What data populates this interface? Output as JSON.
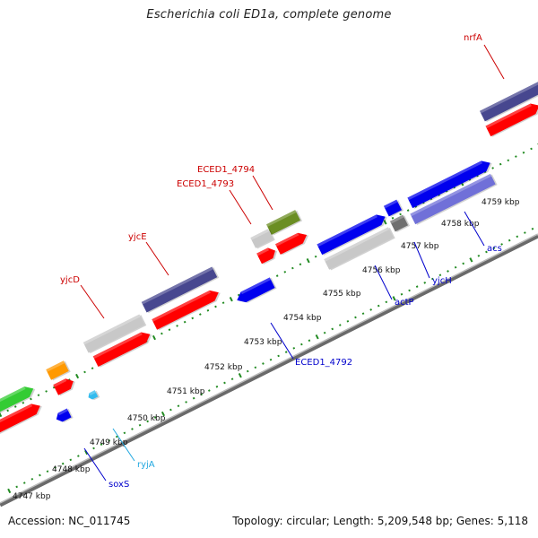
{
  "title": "Escherichia coli ED1a, complete genome",
  "footer": {
    "accession": "Accession: NC_011745",
    "summary": "Topology: circular; Length: 5,209,548 bp; Genes: 5,118"
  },
  "colors": {
    "red": "#ff0000",
    "dark_slate": "#47478f",
    "light_gray": "#c8c8c8",
    "dark_gray": "#707070",
    "blue": "#0000ee",
    "lavender": "#7070d8",
    "olive": "#6b8e23",
    "green": "#33cc33",
    "orange": "#ff9900",
    "cyan": "#33bbee",
    "tick_green": "#228b22",
    "label_red": "#cc0000",
    "label_blue": "#0000cc",
    "label_cyan": "#22a8e0"
  },
  "ticks": [
    {
      "label": "4747 kbp"
    },
    {
      "label": "4748 kbp"
    },
    {
      "label": "4749 kbp"
    },
    {
      "label": "4750 kbp"
    },
    {
      "label": "4751 kbp"
    },
    {
      "label": "4752 kbp"
    },
    {
      "label": "4753 kbp"
    },
    {
      "label": "4754 kbp"
    },
    {
      "label": "4755 kbp"
    },
    {
      "label": "4756 kbp"
    },
    {
      "label": "4757 kbp"
    },
    {
      "label": "4758 kbp"
    },
    {
      "label": "4759 kbp"
    }
  ],
  "gene_labels": [
    {
      "text": "nrfA",
      "color": "label_red"
    },
    {
      "text": "ECED1_4794",
      "color": "label_red"
    },
    {
      "text": "ECED1_4793",
      "color": "label_red"
    },
    {
      "text": "yjcE",
      "color": "label_red"
    },
    {
      "text": "yjcD",
      "color": "label_red"
    },
    {
      "text": "acs",
      "color": "label_blue"
    },
    {
      "text": "yjcH",
      "color": "label_blue"
    },
    {
      "text": "actP",
      "color": "label_blue"
    },
    {
      "text": "ECED1_4792",
      "color": "label_blue"
    },
    {
      "text": "ryjA",
      "color": "label_cyan"
    },
    {
      "text": "soxS",
      "color": "label_blue"
    }
  ]
}
